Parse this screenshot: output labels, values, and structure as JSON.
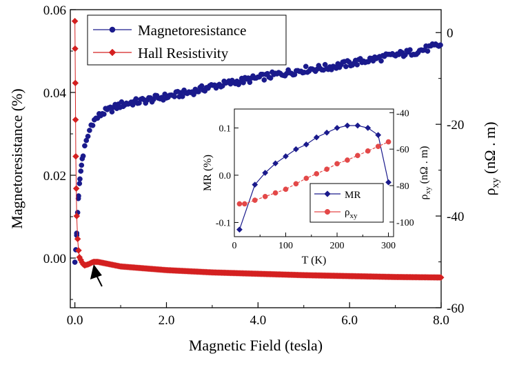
{
  "chart_data": [
    {
      "type": "scatter",
      "xlabel": "Magnetic Field (tesla)",
      "ylabel": "Magnetoresistance (%)",
      "y2label": "ρxy (nΩ . m)",
      "xlim": [
        -0.1,
        8.0
      ],
      "ylim": [
        -0.012,
        0.06
      ],
      "y2lim": [
        -60,
        5
      ],
      "xticks": [
        "0.0",
        "2.0",
        "4.0",
        "6.0",
        "8.0"
      ],
      "yticks": [
        "0.00",
        "0.02",
        "0.04",
        "0.06"
      ],
      "y2ticks": [
        "0",
        "-20",
        "-40",
        "-60"
      ],
      "legend_position": "top-left",
      "colors": {
        "mr": "#1a1a8c",
        "hall": "#d42020",
        "axis": "#000000"
      },
      "series": [
        {
          "name": "Magnetoresistance",
          "axis": "left",
          "marker": "circle",
          "color": "#1a1a8c",
          "x": [
            0.0,
            0.02,
            0.04,
            0.06,
            0.08,
            0.1,
            0.13,
            0.16,
            0.2,
            0.25,
            0.3,
            0.35,
            0.4,
            0.5,
            0.6,
            0.7,
            0.8,
            1.0,
            1.2,
            1.5,
            2.0,
            2.5,
            3.0,
            3.5,
            4.0,
            4.5,
            5.0,
            5.5,
            6.0,
            6.5,
            7.0,
            7.5,
            8.0
          ],
          "y": [
            -0.001,
            0.002,
            0.006,
            0.011,
            0.015,
            0.018,
            0.021,
            0.024,
            0.026,
            0.028,
            0.03,
            0.032,
            0.033,
            0.034,
            0.035,
            0.0355,
            0.036,
            0.037,
            0.0375,
            0.038,
            0.039,
            0.04,
            0.0415,
            0.0425,
            0.0435,
            0.0445,
            0.0455,
            0.046,
            0.047,
            0.048,
            0.049,
            0.05,
            0.0515
          ]
        },
        {
          "name": "Hall Resistivity",
          "axis": "right",
          "marker": "diamond",
          "color": "#d42020",
          "x": [
            0.0,
            0.005,
            0.01,
            0.015,
            0.02,
            0.03,
            0.04,
            0.06,
            0.08,
            0.1,
            0.15,
            0.2,
            0.3,
            0.4,
            0.5,
            0.6,
            0.8,
            1.0,
            1.5,
            2.0,
            3.0,
            4.0,
            5.0,
            6.0,
            7.0,
            8.0
          ],
          "y": [
            2.5,
            -3.5,
            -11,
            -19,
            -27,
            -34,
            -40,
            -45,
            -47.5,
            -49,
            -50,
            -50.8,
            -50.5,
            -50,
            -50,
            -50.2,
            -50.6,
            -51,
            -51.4,
            -51.8,
            -52.3,
            -52.6,
            -52.9,
            -53.1,
            -53.3,
            -53.4
          ]
        }
      ],
      "annotations": [
        {
          "type": "arrow",
          "x": 0.35,
          "y": -0.0005,
          "side": "left"
        }
      ]
    },
    {
      "type": "line",
      "xlabel": "T (K)",
      "ylabel": "MR (%)",
      "y2label": "ρxy (nΩ . m)",
      "xlim": [
        0,
        310
      ],
      "ylim": [
        -0.13,
        0.14
      ],
      "y2lim": [
        -108,
        -38
      ],
      "xticks": [
        "0",
        "100",
        "200",
        "300"
      ],
      "yticks": [
        "-0.1",
        "0.0",
        "0.1"
      ],
      "y2ticks": [
        "-40",
        "-60",
        "-80",
        "-100"
      ],
      "legend_position": "bottom-right",
      "series": [
        {
          "name": "MR",
          "axis": "left",
          "marker": "diamond",
          "color": "#1a1a8c",
          "x": [
            10,
            40,
            60,
            80,
            100,
            120,
            140,
            160,
            180,
            200,
            220,
            240,
            260,
            280,
            300
          ],
          "y": [
            -0.115,
            -0.02,
            0.005,
            0.025,
            0.04,
            0.055,
            0.065,
            0.08,
            0.09,
            0.1,
            0.105,
            0.105,
            0.1,
            0.085,
            -0.015
          ]
        },
        {
          "name": "ρxy",
          "axis": "right",
          "marker": "circle",
          "color": "#e34848",
          "x": [
            10,
            20,
            40,
            60,
            80,
            100,
            120,
            140,
            160,
            180,
            200,
            220,
            240,
            260,
            280,
            300
          ],
          "y": [
            -90,
            -90,
            -88,
            -86,
            -84,
            -82,
            -79,
            -76,
            -73.5,
            -71,
            -68,
            -66,
            -63.5,
            -61,
            -58.5,
            -56
          ]
        }
      ]
    }
  ]
}
